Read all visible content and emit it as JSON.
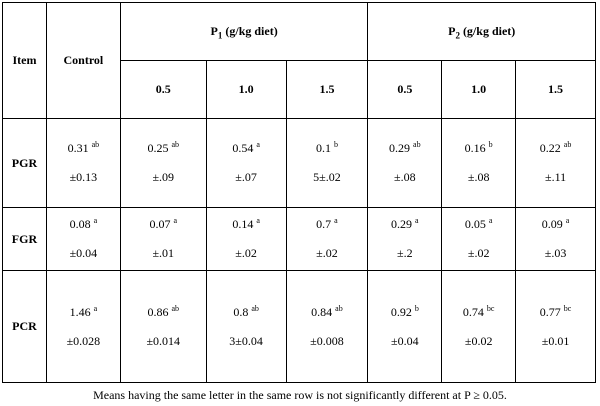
{
  "header": {
    "item": "Item",
    "control": "Control",
    "p1_main": "P",
    "p1_sub": "1",
    "p1_unit": " (g/kg diet)",
    "p2_main": "P",
    "p2_sub": "2",
    "p2_unit": " (g/kg diet)",
    "doses": [
      "0.5",
      "1.0",
      "1.5",
      "0.5",
      "1.0",
      "1.5"
    ]
  },
  "rows": [
    {
      "item": "PGR",
      "cells": [
        {
          "mean": "0.31",
          "sup": "ab",
          "sd": "±0.13"
        },
        {
          "mean": "0.25",
          "sup": "ab",
          "sd": "±.09"
        },
        {
          "mean": "0.54",
          "sup": "a",
          "sd": "±.07"
        },
        {
          "mean": "0.1",
          "sup": "b",
          "sd": "5±.02"
        },
        {
          "mean": "0.29",
          "sup": "ab",
          "sd": "±.08"
        },
        {
          "mean": "0.16",
          "sup": "b",
          "sd": "±.08"
        },
        {
          "mean": "0.22",
          "sup": "ab",
          "sd": "±.11"
        }
      ]
    },
    {
      "item": "FGR",
      "cells": [
        {
          "mean": "0.08",
          "sup": "a",
          "sd": "±0.04"
        },
        {
          "mean": "0.07",
          "sup": "a",
          "sd": "±.01"
        },
        {
          "mean": "0.14",
          "sup": "a",
          "sd": "±.02"
        },
        {
          "mean": "0.7",
          "sup": "a",
          "sd": "±.02"
        },
        {
          "mean": "0.29",
          "sup": "a",
          "sd": "±.2"
        },
        {
          "mean": "0.05",
          "sup": "a",
          "sd": "±.02"
        },
        {
          "mean": "0.09",
          "sup": "a",
          "sd": "±.03"
        }
      ]
    },
    {
      "item": "PCR",
      "cells": [
        {
          "mean": "1.46",
          "sup": "a",
          "sd": "±0.028"
        },
        {
          "mean": "0.86",
          "sup": "ab",
          "sd": "±0.014"
        },
        {
          "mean": "0.8",
          "sup": "ab",
          "sd": "3±0.04"
        },
        {
          "mean": "0.84",
          "sup": "ab",
          "sd": "±0.008"
        },
        {
          "mean": "0.92",
          "sup": "b",
          "sd": "±0.04"
        },
        {
          "mean": "0.74",
          "sup": "bc",
          "sd": "±0.02"
        },
        {
          "mean": "0.77",
          "sup": "bc",
          "sd": "±0.01"
        }
      ]
    }
  ],
  "footnote": "Means having the same letter in the same row is not significantly different at P ≥ 0.05."
}
